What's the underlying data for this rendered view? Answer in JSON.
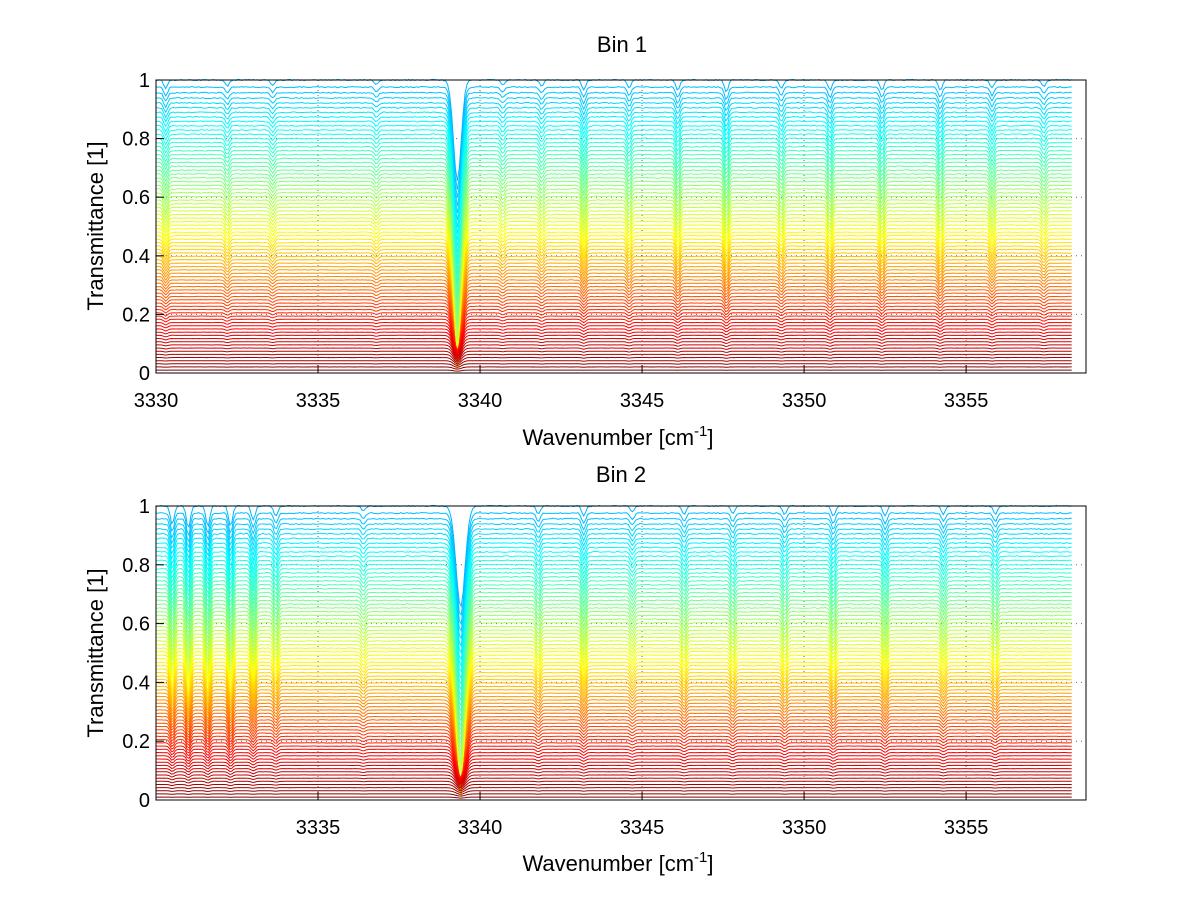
{
  "chart_data": [
    {
      "type": "line",
      "title": "Bin 1",
      "xlabel": "Wavenumber [cm",
      "xlabel_sup": "-1",
      "xlabel_end": "]",
      "ylabel": "Transmittance [1]",
      "xlim": [
        3330,
        3358.7
      ],
      "ylim": [
        0,
        1
      ],
      "xticks": [
        3330,
        3335,
        3340,
        3345,
        3350,
        3355
      ],
      "yticks": [
        0,
        0.2,
        0.4,
        0.6,
        0.8,
        1
      ],
      "xtick_labels": [
        "3330",
        "3335",
        "3340",
        "3345",
        "3350",
        "3355"
      ],
      "ytick_labels": [
        "0",
        "0.2",
        "0.4",
        "0.6",
        "0.8",
        "1"
      ],
      "grid": true,
      "colormap": "jet",
      "series_count": 80,
      "x_data_range": [
        3330,
        3358.3
      ],
      "baseline_levels": [
        0.01,
        1.0
      ],
      "absorption_lines": [
        {
          "center": 3339.3,
          "width": 0.12,
          "depth": 0.98
        },
        {
          "center": 3330.3,
          "width": 0.06,
          "depth": 0.08
        },
        {
          "center": 3332.2,
          "width": 0.06,
          "depth": 0.06
        },
        {
          "center": 3333.6,
          "width": 0.06,
          "depth": 0.05
        },
        {
          "center": 3336.8,
          "width": 0.06,
          "depth": 0.04
        },
        {
          "center": 3340.7,
          "width": 0.06,
          "depth": 0.05
        },
        {
          "center": 3341.9,
          "width": 0.06,
          "depth": 0.06
        },
        {
          "center": 3343.2,
          "width": 0.06,
          "depth": 0.1
        },
        {
          "center": 3344.6,
          "width": 0.06,
          "depth": 0.08
        },
        {
          "center": 3346.1,
          "width": 0.06,
          "depth": 0.1
        },
        {
          "center": 3347.6,
          "width": 0.06,
          "depth": 0.12
        },
        {
          "center": 3349.3,
          "width": 0.06,
          "depth": 0.08
        },
        {
          "center": 3350.8,
          "width": 0.06,
          "depth": 0.1
        },
        {
          "center": 3352.4,
          "width": 0.06,
          "depth": 0.1
        },
        {
          "center": 3354.2,
          "width": 0.06,
          "depth": 0.1
        },
        {
          "center": 3355.8,
          "width": 0.06,
          "depth": 0.08
        },
        {
          "center": 3357.4,
          "width": 0.06,
          "depth": 0.06
        }
      ]
    },
    {
      "type": "line",
      "title": "Bin 2",
      "xlabel": "Wavenumber [cm",
      "xlabel_sup": "-1",
      "xlabel_end": "]",
      "ylabel": "Transmittance [1]",
      "xlim": [
        3330,
        3358.7
      ],
      "ylim": [
        0,
        1
      ],
      "xticks": [
        3335,
        3340,
        3345,
        3350,
        3355
      ],
      "yticks": [
        0,
        0.2,
        0.4,
        0.6,
        0.8,
        1
      ],
      "xtick_labels": [
        "3335",
        "3340",
        "3345",
        "3350",
        "3355"
      ],
      "ytick_labels": [
        "0",
        "0.2",
        "0.4",
        "0.6",
        "0.8",
        "1"
      ],
      "grid": true,
      "colormap": "jet",
      "series_count": 80,
      "x_data_range": [
        3330,
        3358.3
      ],
      "baseline_levels": [
        0.01,
        1.0
      ],
      "absorption_lines": [
        {
          "center": 3339.4,
          "width": 0.14,
          "depth": 0.98
        },
        {
          "center": 3330.5,
          "width": 0.06,
          "depth": 0.18
        },
        {
          "center": 3331.0,
          "width": 0.06,
          "depth": 0.22
        },
        {
          "center": 3331.6,
          "width": 0.06,
          "depth": 0.2
        },
        {
          "center": 3332.3,
          "width": 0.06,
          "depth": 0.2
        },
        {
          "center": 3333.0,
          "width": 0.06,
          "depth": 0.14
        },
        {
          "center": 3333.7,
          "width": 0.06,
          "depth": 0.1
        },
        {
          "center": 3336.4,
          "width": 0.06,
          "depth": 0.05
        },
        {
          "center": 3341.8,
          "width": 0.06,
          "depth": 0.08
        },
        {
          "center": 3343.2,
          "width": 0.06,
          "depth": 0.1
        },
        {
          "center": 3344.7,
          "width": 0.06,
          "depth": 0.06
        },
        {
          "center": 3346.3,
          "width": 0.06,
          "depth": 0.08
        },
        {
          "center": 3347.8,
          "width": 0.06,
          "depth": 0.08
        },
        {
          "center": 3349.4,
          "width": 0.06,
          "depth": 0.08
        },
        {
          "center": 3350.9,
          "width": 0.06,
          "depth": 0.1
        },
        {
          "center": 3352.5,
          "width": 0.06,
          "depth": 0.1
        },
        {
          "center": 3354.3,
          "width": 0.06,
          "depth": 0.08
        },
        {
          "center": 3355.9,
          "width": 0.06,
          "depth": 0.08
        }
      ]
    }
  ]
}
